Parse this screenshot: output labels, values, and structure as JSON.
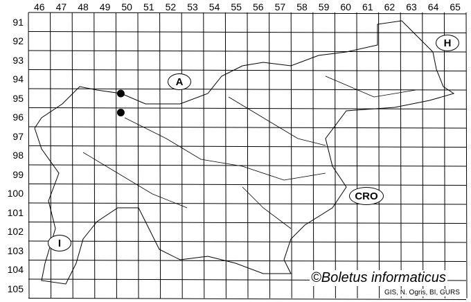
{
  "map": {
    "columns": [
      "46",
      "47",
      "48",
      "49",
      "50",
      "51",
      "52",
      "53",
      "54",
      "55",
      "56",
      "57",
      "58",
      "59",
      "60",
      "61",
      "62",
      "63",
      "64",
      "65"
    ],
    "rows": [
      "91",
      "92",
      "93",
      "94",
      "95",
      "96",
      "97",
      "98",
      "99",
      "100",
      "101",
      "102",
      "103",
      "104",
      "105"
    ],
    "country_labels": [
      {
        "code": "A"
      },
      {
        "code": "H"
      },
      {
        "code": "CRO"
      },
      {
        "code": "I"
      }
    ],
    "records": [
      {
        "col": "50",
        "row": "95"
      },
      {
        "col": "50",
        "row": "96"
      }
    ],
    "line_color": "#000000",
    "dot_color": "#000000"
  },
  "credit": "©Boletus informaticus",
  "source": "GIS, N. Ogris, BI, GURS"
}
